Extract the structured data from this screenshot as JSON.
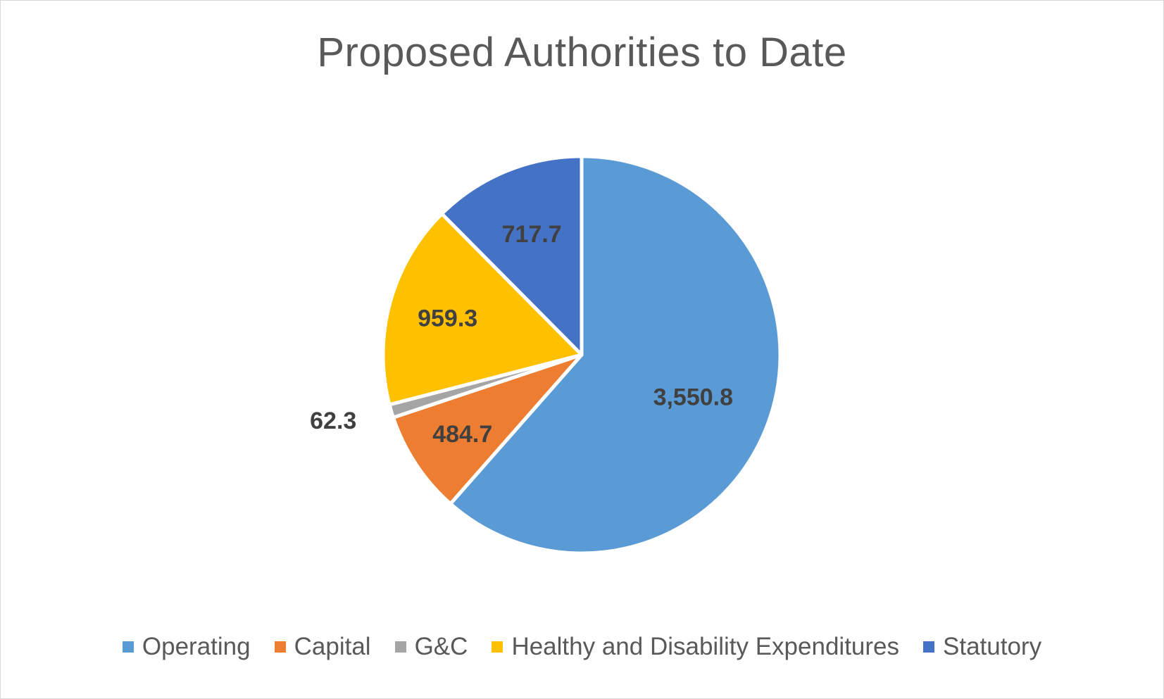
{
  "chart_data": {
    "type": "pie",
    "title": "Proposed Authorities to Date",
    "categories": [
      "Operating",
      "Capital",
      "G&C",
      "Healthy and Disability Expenditures",
      "Statutory"
    ],
    "values": [
      3550.8,
      484.7,
      62.3,
      959.3,
      717.7
    ],
    "labels": [
      "3,550.8",
      "484.7",
      "62.3",
      "959.3",
      "717.7"
    ],
    "colors": [
      "#5b9bd5",
      "#ed7d31",
      "#a5a5a5",
      "#ffc000",
      "#4472c4"
    ],
    "start_angle_deg": 0,
    "direction": "clockwise",
    "legend_position": "bottom"
  }
}
